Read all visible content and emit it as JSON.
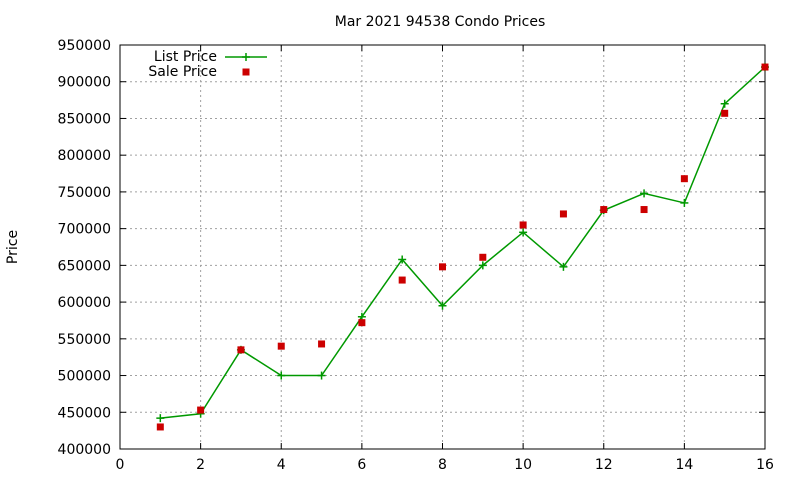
{
  "chart_data": {
    "type": "line",
    "title": "Mar 2021 94538 Condo Prices",
    "xlabel": "",
    "ylabel": "Price",
    "xlim": [
      0,
      16
    ],
    "ylim": [
      400000,
      950000
    ],
    "x_ticks": [
      0,
      2,
      4,
      6,
      8,
      10,
      12,
      14,
      16
    ],
    "y_ticks": [
      400000,
      450000,
      500000,
      550000,
      600000,
      650000,
      700000,
      750000,
      800000,
      850000,
      900000,
      950000
    ],
    "grid": true,
    "legend_position": "top-left",
    "series": [
      {
        "name": "List Price",
        "style": "line+cross",
        "color": "#009900",
        "x": [
          1,
          2,
          3,
          4,
          5,
          6,
          7,
          8,
          9,
          10,
          11,
          12,
          13,
          14,
          15,
          16
        ],
        "values": [
          442000,
          448000,
          535000,
          500000,
          500000,
          580000,
          658000,
          595000,
          650000,
          695000,
          648000,
          725000,
          748000,
          735000,
          870000,
          920000
        ]
      },
      {
        "name": "Sale Price",
        "style": "square",
        "color": "#cc0000",
        "x": [
          1,
          2,
          3,
          4,
          5,
          6,
          7,
          8,
          9,
          10,
          11,
          12,
          13,
          14,
          15,
          16
        ],
        "values": [
          430000,
          453000,
          535000,
          540000,
          543000,
          572000,
          630000,
          648000,
          661000,
          705000,
          720000,
          726000,
          726000,
          768000,
          857000,
          920000
        ]
      }
    ]
  }
}
